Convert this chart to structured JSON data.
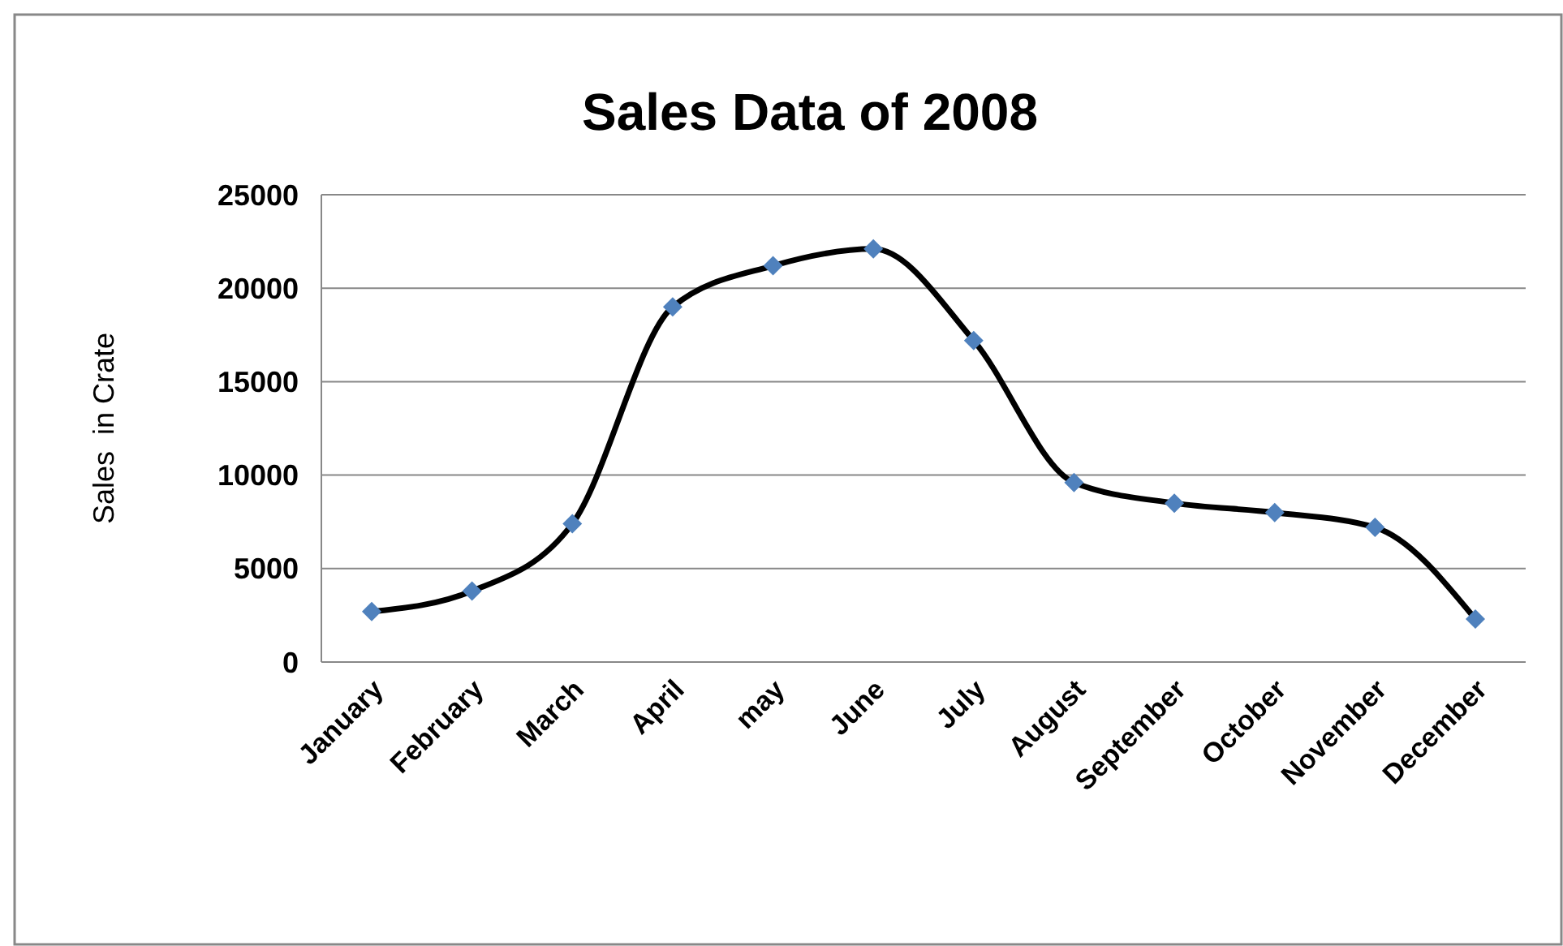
{
  "chart_data": {
    "type": "line",
    "title": "Sales Data of 2008",
    "ylabel": "Sales  in Crate",
    "categories": [
      "January",
      "February",
      "March",
      "April",
      "may",
      "June",
      "July",
      "August",
      "September",
      "October",
      "November",
      "December"
    ],
    "series": [
      {
        "color": "#000000",
        "colors": [
          "#4f81bd",
          "#4f81bd",
          "#4f81bd",
          "#4f81bd",
          "#4f81bd",
          "#4f81bd",
          "#4f81bd",
          "#4f81bd",
          "#4f81bd",
          "#4f81bd",
          "#4f81bd",
          "#4f81bd"
        ],
        "values": [
          2700,
          3800,
          7400,
          19000,
          21200,
          22100,
          17200,
          9600,
          8500,
          8000,
          7200,
          2300
        ]
      }
    ],
    "ylim": [
      0,
      25000
    ],
    "yticks": [
      0,
      5000,
      10000,
      15000,
      20000,
      25000
    ],
    "grid": "y",
    "marker": "diamond",
    "line_style": "solid"
  }
}
